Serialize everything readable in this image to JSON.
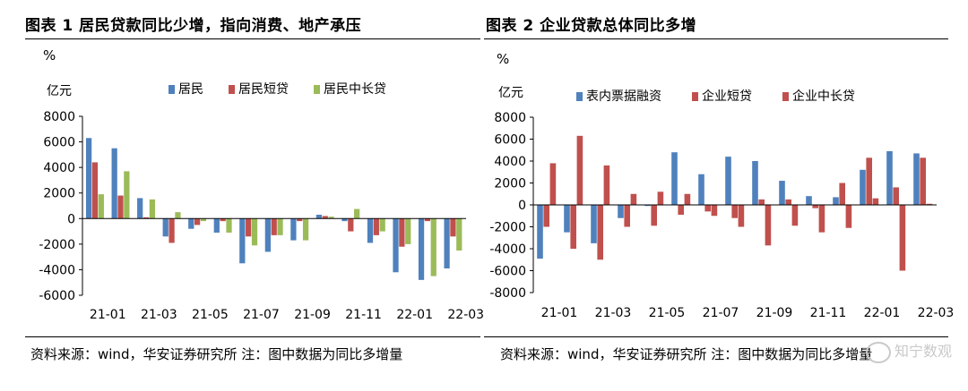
{
  "charts": [
    {
      "title": "图表 1 居民贷款同比少增，指向消费、地产承压",
      "pct_label": "%",
      "unit_label": "亿元",
      "source": "资料来源：wind，华安证券研究所  注：图中数据为同比多增量"
    },
    {
      "title": "图表 2 企业贷款总体同比多增",
      "pct_label": "%",
      "unit_label": "亿元",
      "source": "资料来源：wind，华安证券研究所  注：图中数据为同比多增量"
    }
  ],
  "watermark": "知宁数观",
  "chart_data": [
    {
      "type": "bar",
      "title": "图表 1 居民贷款同比少增，指向消费、地产承压",
      "ylabel": "亿元",
      "ylim": [
        -6000,
        8000
      ],
      "yticks": [
        8000,
        6000,
        4000,
        2000,
        0,
        -2000,
        -4000,
        -6000
      ],
      "legend_position": "top",
      "categories": [
        "21-01",
        "21-02",
        "21-03",
        "21-04",
        "21-05",
        "21-06",
        "21-07",
        "21-08",
        "21-09",
        "21-10",
        "21-11",
        "21-12",
        "22-01",
        "22-02",
        "22-03"
      ],
      "tick_labels": [
        "21-01",
        "21-03",
        "21-05",
        "21-07",
        "21-09",
        "21-11",
        "22-01",
        "22-03"
      ],
      "series": [
        {
          "name": "居民",
          "color": "#4F81BD",
          "values": [
            6300,
            5500,
            1600,
            -1400,
            -800,
            -1100,
            -3500,
            -2600,
            -1700,
            300,
            -200,
            -1900,
            -4200,
            -4800,
            -3900
          ]
        },
        {
          "name": "居民短贷",
          "color": "#C0504D",
          "values": [
            4400,
            1800,
            100,
            -1900,
            -500,
            -200,
            -1400,
            -1300,
            -200,
            200,
            -1000,
            -1300,
            -2200,
            -200,
            -1400
          ]
        },
        {
          "name": "居民中长贷",
          "color": "#9BBB59",
          "values": [
            1900,
            3700,
            1500,
            500,
            -200,
            -1100,
            -2100,
            -1300,
            -1700,
            150,
            750,
            -1000,
            -2000,
            -4500,
            -2500
          ]
        }
      ]
    },
    {
      "type": "bar",
      "title": "图表 2 企业贷款总体同比多增",
      "ylabel": "亿元",
      "ylim": [
        -8000,
        8000
      ],
      "yticks": [
        8000,
        6000,
        4000,
        2000,
        0,
        -2000,
        -4000,
        -6000,
        -8000
      ],
      "legend_position": "top",
      "categories": [
        "21-01",
        "21-02",
        "21-03",
        "21-04",
        "21-05",
        "21-06",
        "21-07",
        "21-08",
        "21-09",
        "21-10",
        "21-11",
        "21-12",
        "22-01",
        "22-02",
        "22-03"
      ],
      "tick_labels": [
        "21-01",
        "21-03",
        "21-05",
        "21-07",
        "21-09",
        "21-11",
        "22-01",
        "22-03"
      ],
      "series": [
        {
          "name": "表内票据融资",
          "color": "#4F81BD",
          "values": [
            -4900,
            -2500,
            -3500,
            -1200,
            -100,
            4800,
            2800,
            4400,
            4000,
            2200,
            800,
            700,
            3200,
            4900,
            4700
          ]
        },
        {
          "name": "企业短贷",
          "color": "#C0504D",
          "values": [
            -2000,
            -4000,
            -5000,
            -2000,
            -1900,
            -900,
            -600,
            -1200,
            500,
            500,
            -300,
            2000,
            4300,
            1600,
            4300
          ]
        },
        {
          "name": "企业中长贷",
          "color": "#C0504D",
          "values": [
            3800,
            6300,
            3600,
            1000,
            1200,
            1000,
            -1000,
            -2000,
            -3700,
            -1900,
            -2500,
            -2100,
            600,
            -6000,
            100
          ]
        }
      ]
    }
  ]
}
